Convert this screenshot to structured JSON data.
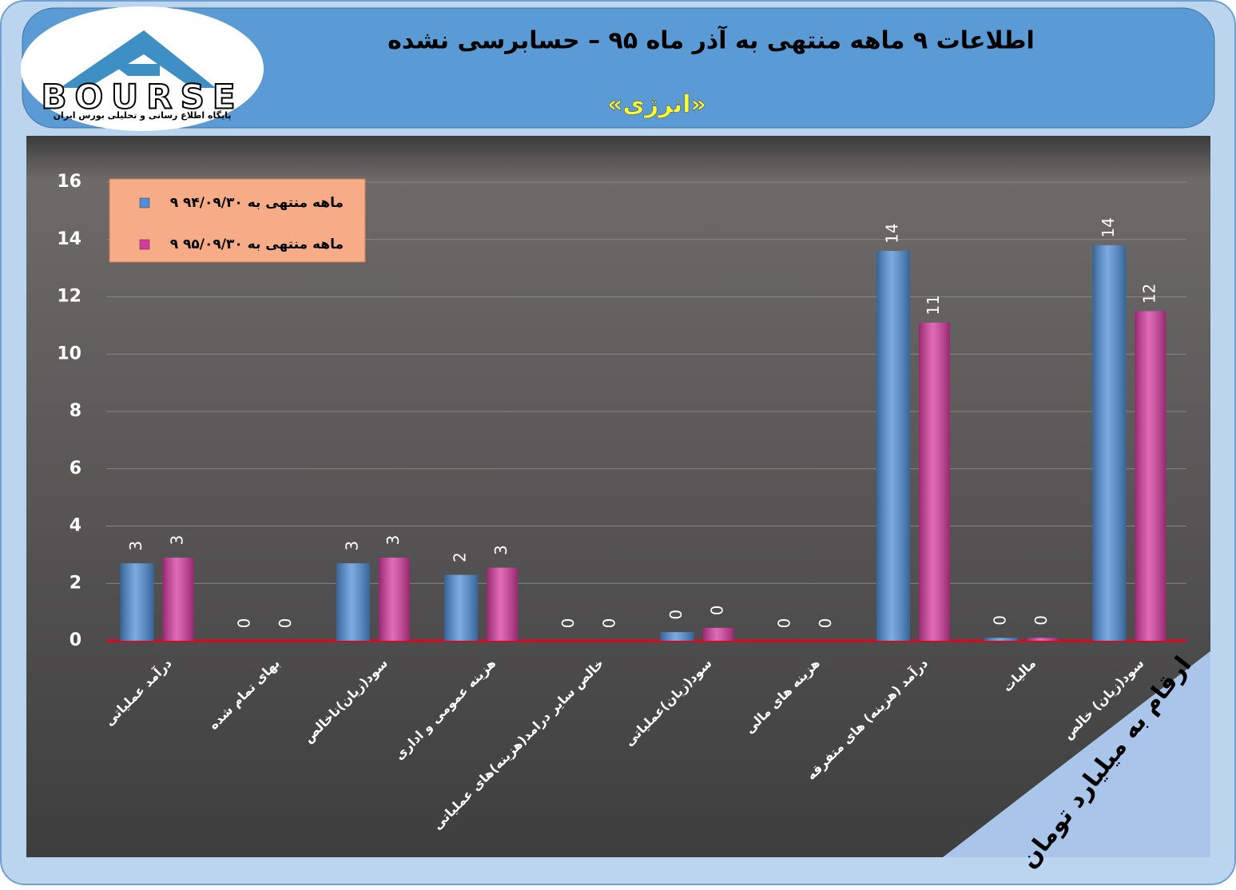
{
  "chart_data": {
    "type": "bar",
    "title": "اطلاعات ۹ ماهه منتهی به آذر ماه ۹۵ – حسابرسی نشده",
    "subtitle": "«انرژی»",
    "note": "ارقام به میلیارد تومان",
    "categories": [
      "درآمد عملیاتی",
      "بهای تمام شده",
      "سود(زیان)ناخالص",
      "هزینه عمومی و اداری",
      "خالص سایر درامد(هزینه)های عملیاتی",
      "سود(زیان)عملیاتی",
      "هزینه های مالی",
      "درآمد (هزینه) های متفرقه",
      "مالیات",
      "سود(زیان) خالص"
    ],
    "series": [
      {
        "name": "۹ ماهه منتهی به ۹۴/۰۹/۳۰",
        "color": "#4f8fd8",
        "values": [
          2.7,
          0,
          2.7,
          2.3,
          0,
          0.3,
          0,
          13.6,
          0.1,
          13.8
        ],
        "value_labels": [
          "3",
          "0",
          "3",
          "2",
          "0",
          "0",
          "0",
          "14",
          "0",
          "14"
        ]
      },
      {
        "name": "۹ ماهه منتهی به ۹۵/۰۹/۳۰",
        "color": "#d63a9e",
        "values": [
          2.9,
          0,
          2.9,
          2.55,
          0,
          0.45,
          0,
          11.1,
          0.1,
          11.5
        ],
        "value_labels": [
          "3",
          "0",
          "3",
          "3",
          "0",
          "0",
          "0",
          "11",
          "0",
          "12"
        ]
      }
    ],
    "ylim": [
      0,
      16
    ],
    "yticks": [
      0,
      2,
      4,
      6,
      8,
      10,
      12,
      14,
      16
    ],
    "grid": true
  },
  "logo": {
    "text": "BOURSE",
    "tagline": "پایگاه اطلاع رسانی و تحلیلی بورس ایران"
  }
}
